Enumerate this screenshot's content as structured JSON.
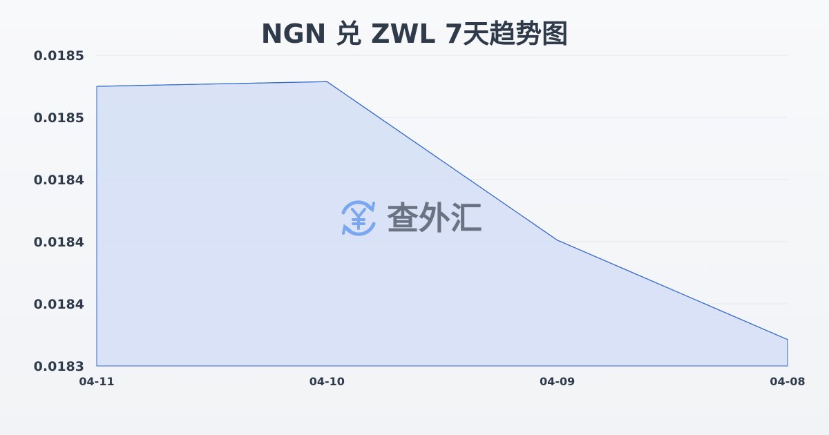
{
  "chart_data": {
    "type": "area",
    "title": "NGN 兑 ZWL 7天趋势图",
    "categories": [
      "04-11",
      "04-10",
      "04-09",
      "04-08"
    ],
    "values": [
      0.0185,
      0.018503,
      0.018401,
      0.018337
    ],
    "ylim": [
      0.01832,
      0.01852
    ],
    "yticks": [
      0.01852,
      0.01848,
      0.01844,
      0.0184,
      0.01836,
      0.01832
    ],
    "ytick_labels": [
      "0.0185",
      "0.0185",
      "0.0184",
      "0.0184",
      "0.0184",
      "0.0183"
    ],
    "grid": true,
    "line_color": "#3366cc",
    "fill_color": "#d6e0f5"
  },
  "watermark": {
    "text": "查外汇",
    "icon": "currency-exchange-yen-icon",
    "icon_color": "#7aa7f0",
    "text_color": "#6b7383"
  }
}
